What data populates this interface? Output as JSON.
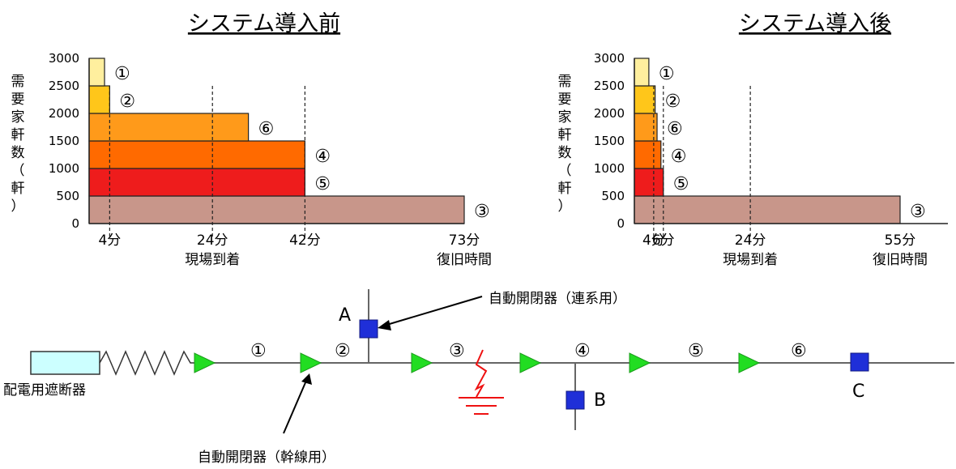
{
  "charts": [
    {
      "id": "before",
      "title": "システム導入前",
      "ylabel": [
        "需",
        "要",
        "家",
        "軒",
        "数",
        "（",
        "軒",
        "）"
      ],
      "yticks": [
        "0",
        "500",
        "1000",
        "1500",
        "2000",
        "2500",
        "3000"
      ],
      "xticks": [
        {
          "v": 4,
          "label": "4分"
        },
        {
          "v": 24,
          "label": "24分"
        },
        {
          "v": 42,
          "label": "42分"
        },
        {
          "v": 73,
          "label": "73分"
        }
      ],
      "dashed": [
        4,
        24,
        42
      ],
      "xlabel_mid": {
        "v": 24,
        "label": "現場到着"
      },
      "xlabel_end": {
        "v": 73,
        "label": "復旧時間"
      }
    },
    {
      "id": "after",
      "title": "システム導入後",
      "ylabel": [
        "需",
        "要",
        "家",
        "軒",
        "数",
        "（",
        "軒",
        "）"
      ],
      "yticks": [
        "0",
        "500",
        "1000",
        "1500",
        "2000",
        "2500",
        "3000"
      ],
      "xticks": [
        {
          "v": 4,
          "label": "4分"
        },
        {
          "v": 6,
          "label": "6分"
        },
        {
          "v": 24,
          "label": "24分"
        },
        {
          "v": 55,
          "label": "55分"
        }
      ],
      "dashed": [
        4,
        6,
        24
      ],
      "xlabel_mid": {
        "v": 24,
        "label": "現場到着"
      },
      "xlabel_end": {
        "v": 55,
        "label": "復旧時間"
      }
    }
  ],
  "chart_data": [
    {
      "type": "bar",
      "title": "システム導入前",
      "ylabel": "需要家軒数（軒）",
      "ylim": [
        0,
        3000
      ],
      "series": [
        {
          "name": "③",
          "y_from": 0,
          "y_to": 500,
          "duration": 73,
          "color": "#c8968a"
        },
        {
          "name": "⑤",
          "y_from": 500,
          "y_to": 1000,
          "duration": 42,
          "color": "#ee1c1c"
        },
        {
          "name": "④",
          "y_from": 1000,
          "y_to": 1500,
          "duration": 42,
          "color": "#ff6a00"
        },
        {
          "name": "⑥",
          "y_from": 1500,
          "y_to": 2000,
          "duration": 31,
          "color": "#ff9a1a"
        },
        {
          "name": "②",
          "y_from": 2000,
          "y_to": 2500,
          "duration": 4,
          "color": "#ffc61a"
        },
        {
          "name": "①",
          "y_from": 2500,
          "y_to": 3000,
          "duration": 3,
          "color": "#ffef9e"
        }
      ]
    },
    {
      "type": "bar",
      "title": "システム導入後",
      "ylabel": "需要家軒数（軒）",
      "ylim": [
        0,
        3000
      ],
      "series": [
        {
          "name": "③",
          "y_from": 0,
          "y_to": 500,
          "duration": 55,
          "color": "#c8968a"
        },
        {
          "name": "⑤",
          "y_from": 500,
          "y_to": 1000,
          "duration": 6,
          "color": "#ee1c1c"
        },
        {
          "name": "④",
          "y_from": 1000,
          "y_to": 1500,
          "duration": 5.5,
          "color": "#ff6a00"
        },
        {
          "name": "⑥",
          "y_from": 1500,
          "y_to": 2000,
          "duration": 4.7,
          "color": "#ff9a1a"
        },
        {
          "name": "②",
          "y_from": 2000,
          "y_to": 2500,
          "duration": 4.3,
          "color": "#ffc61a"
        },
        {
          "name": "①",
          "y_from": 2500,
          "y_to": 3000,
          "duration": 3,
          "color": "#ffef9e"
        }
      ]
    }
  ],
  "diagram": {
    "breaker_label": "配電用遮断器",
    "trunk_switch_label": "自動開閉器（幹線用）",
    "tie_switch_label": "自動開閉器（連系用）",
    "point_a": "A",
    "point_b": "B",
    "point_c": "C",
    "sections": [
      "①",
      "②",
      "③",
      "④",
      "⑤",
      "⑥"
    ],
    "colors": {
      "breaker_fill": "#ccffff",
      "switch_triangle": "#22dd22",
      "tie_switch": "#1f2fd8",
      "fault": "#ee1111",
      "line": "#666666"
    }
  }
}
